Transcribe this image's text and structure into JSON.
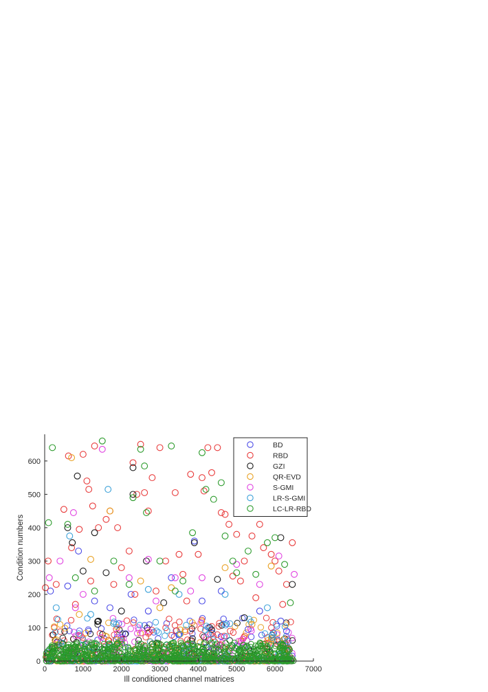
{
  "chart_data": {
    "type": "scatter",
    "title": "",
    "xlabel": "Ill conditioned channel matrices",
    "ylabel": "Condition numbers",
    "xlim": [
      0,
      7000
    ],
    "ylim": [
      0,
      680
    ],
    "xticks": [
      0,
      1000,
      2000,
      3000,
      4000,
      5000,
      6000,
      7000
    ],
    "yticks": [
      0,
      100,
      200,
      300,
      400,
      500,
      600
    ],
    "xtick_labels": [
      "0",
      "1000",
      "2000",
      "3000",
      "4000",
      "5000",
      "6000",
      "7000"
    ],
    "ytick_labels": [
      "0",
      "100",
      "200",
      "300",
      "400",
      "500",
      "600"
    ],
    "grid": false,
    "marker": "open-circle",
    "legend": {
      "placement": "top-right",
      "boxed": true
    },
    "series": [
      {
        "name": "BD",
        "color": "#4a4ae6",
        "points": [
          [
            150,
            210
          ],
          [
            600,
            225
          ],
          [
            880,
            330
          ],
          [
            1300,
            180
          ],
          [
            1700,
            160
          ],
          [
            2250,
            200
          ],
          [
            2700,
            150
          ],
          [
            3300,
            250
          ],
          [
            3900,
            360
          ],
          [
            4100,
            180
          ],
          [
            4600,
            210
          ],
          [
            5300,
            95
          ],
          [
            5600,
            150
          ],
          [
            6150,
            120
          ],
          [
            6300,
            90
          ]
        ]
      },
      {
        "name": "RBD",
        "color": "#e83a3a",
        "points": [
          [
            20,
            220
          ],
          [
            90,
            300
          ],
          [
            300,
            230
          ],
          [
            500,
            455
          ],
          [
            620,
            615
          ],
          [
            700,
            340
          ],
          [
            900,
            395
          ],
          [
            1000,
            620
          ],
          [
            1100,
            540
          ],
          [
            1150,
            515
          ],
          [
            1250,
            465
          ],
          [
            1300,
            645
          ],
          [
            1400,
            400
          ],
          [
            1600,
            425
          ],
          [
            1700,
            450
          ],
          [
            1900,
            400
          ],
          [
            2000,
            280
          ],
          [
            2200,
            330
          ],
          [
            2300,
            595
          ],
          [
            2400,
            500
          ],
          [
            2500,
            650
          ],
          [
            2600,
            505
          ],
          [
            2700,
            450
          ],
          [
            2800,
            550
          ],
          [
            3000,
            640
          ],
          [
            3150,
            300
          ],
          [
            3400,
            505
          ],
          [
            3500,
            320
          ],
          [
            3800,
            560
          ],
          [
            4000,
            320
          ],
          [
            4100,
            550
          ],
          [
            4150,
            510
          ],
          [
            4250,
            640
          ],
          [
            4350,
            565
          ],
          [
            4500,
            640
          ],
          [
            4600,
            445
          ],
          [
            4700,
            440
          ],
          [
            4800,
            410
          ],
          [
            5000,
            380
          ],
          [
            5200,
            300
          ],
          [
            5400,
            375
          ],
          [
            5600,
            410
          ],
          [
            5700,
            340
          ],
          [
            5900,
            320
          ],
          [
            6000,
            300
          ],
          [
            6100,
            270
          ],
          [
            6300,
            230
          ],
          [
            6450,
            355
          ],
          [
            2350,
            200
          ],
          [
            1800,
            230
          ],
          [
            3600,
            260
          ],
          [
            5100,
            240
          ],
          [
            1200,
            240
          ],
          [
            2900,
            210
          ],
          [
            4900,
            255
          ],
          [
            6200,
            170
          ],
          [
            800,
            170
          ],
          [
            3700,
            180
          ],
          [
            5500,
            190
          ]
        ]
      },
      {
        "name": "GZI",
        "color": "#1a1a1a",
        "points": [
          [
            600,
            400
          ],
          [
            720,
            355
          ],
          [
            850,
            555
          ],
          [
            1000,
            270
          ],
          [
            1300,
            385
          ],
          [
            1600,
            265
          ],
          [
            2300,
            580
          ],
          [
            2300,
            500
          ],
          [
            2650,
            300
          ],
          [
            3100,
            175
          ],
          [
            3900,
            355
          ],
          [
            4500,
            245
          ],
          [
            6150,
            370
          ],
          [
            6450,
            230
          ],
          [
            5200,
            130
          ],
          [
            2000,
            150
          ],
          [
            1400,
            120
          ]
        ]
      },
      {
        "name": "QR-EVD",
        "color": "#e8a020",
        "points": [
          [
            700,
            610
          ],
          [
            1200,
            305
          ],
          [
            1700,
            450
          ],
          [
            2500,
            240
          ],
          [
            3300,
            220
          ],
          [
            4700,
            280
          ],
          [
            5900,
            285
          ],
          [
            900,
            140
          ],
          [
            3000,
            160
          ],
          [
            5400,
            110
          ]
        ]
      },
      {
        "name": "S-GMI",
        "color": "#e040e0",
        "points": [
          [
            120,
            250
          ],
          [
            400,
            300
          ],
          [
            750,
            445
          ],
          [
            1500,
            635
          ],
          [
            2200,
            250
          ],
          [
            2700,
            305
          ],
          [
            3400,
            250
          ],
          [
            4100,
            250
          ],
          [
            5000,
            290
          ],
          [
            6100,
            315
          ],
          [
            6500,
            260
          ],
          [
            1000,
            200
          ],
          [
            3800,
            210
          ],
          [
            5600,
            230
          ],
          [
            2900,
            180
          ],
          [
            800,
            160
          ]
        ]
      },
      {
        "name": "LR-S-GMI",
        "color": "#3aa0d8",
        "points": [
          [
            650,
            375
          ],
          [
            1650,
            515
          ],
          [
            2700,
            215
          ],
          [
            3500,
            200
          ],
          [
            4700,
            200
          ],
          [
            5800,
            160
          ],
          [
            300,
            160
          ],
          [
            1200,
            140
          ]
        ]
      },
      {
        "name": "LC-LR-RBD",
        "color": "#2a9a2a",
        "points": [
          [
            100,
            415
          ],
          [
            200,
            640
          ],
          [
            600,
            410
          ],
          [
            1500,
            660
          ],
          [
            2300,
            490
          ],
          [
            2500,
            635
          ],
          [
            2600,
            585
          ],
          [
            2650,
            445
          ],
          [
            3300,
            645
          ],
          [
            3400,
            210
          ],
          [
            3850,
            385
          ],
          [
            4100,
            625
          ],
          [
            4200,
            515
          ],
          [
            4400,
            485
          ],
          [
            4600,
            535
          ],
          [
            4700,
            375
          ],
          [
            5000,
            265
          ],
          [
            5300,
            330
          ],
          [
            5800,
            355
          ],
          [
            6000,
            370
          ],
          [
            6400,
            175
          ],
          [
            800,
            250
          ],
          [
            1800,
            300
          ],
          [
            3000,
            300
          ],
          [
            4900,
            300
          ],
          [
            5500,
            260
          ],
          [
            6250,
            290
          ],
          [
            1300,
            210
          ],
          [
            2200,
            230
          ],
          [
            3600,
            240
          ]
        ]
      }
    ]
  }
}
